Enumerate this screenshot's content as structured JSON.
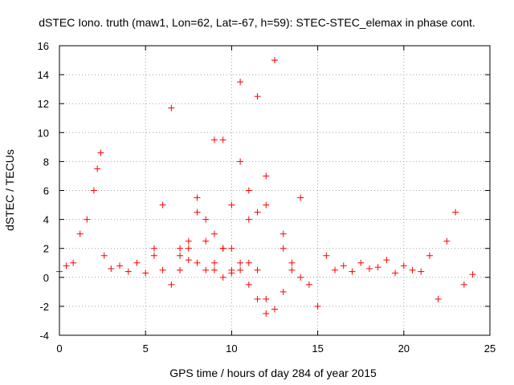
{
  "chart_data": {
    "type": "scatter",
    "title": "dSTEC Iono. truth (maw1, Lon=62, Lat=-67, h=59): STEC-STEC_elemax in phase cont.",
    "xlabel": "GPS time / hours of day 284 of year 2015",
    "ylabel": "dSTEC  / TECUs",
    "xlim": [
      0,
      25
    ],
    "ylim": [
      -4,
      16
    ],
    "x_ticks": [
      0,
      5,
      10,
      15,
      20,
      25
    ],
    "y_ticks": [
      -4,
      -2,
      0,
      2,
      4,
      6,
      8,
      10,
      12,
      14,
      16
    ],
    "grid": true,
    "marker": "+",
    "color": "#ff0000",
    "series": [
      {
        "x": [
          0.0,
          0.4,
          0.8,
          1.2,
          1.6,
          2.0,
          2.2,
          2.4,
          2.6,
          3.0,
          3.5,
          4.0,
          4.5,
          5.0,
          5.5,
          6.0,
          6.5,
          7.0,
          7.5,
          8.0,
          8.5,
          9.0,
          9.5,
          10.0,
          10.5,
          11.0,
          11.5,
          12.0,
          12.5,
          13.0,
          13.5,
          14.0,
          14.5,
          15.0,
          15.5,
          16.0,
          16.5,
          17.0,
          17.5,
          18.0,
          18.5,
          19.0,
          19.5,
          20.0,
          20.5,
          21.0,
          21.5,
          22.0,
          22.5,
          23.0,
          23.5,
          24.0
        ],
        "y": [
          0.4,
          0.8,
          1.0,
          3.0,
          4.0,
          6.0,
          7.5,
          8.6,
          1.5,
          0.6,
          0.8,
          0.4,
          1.0,
          0.3,
          1.5,
          5.0,
          11.7,
          2.0,
          1.2,
          5.5,
          4.0,
          9.5,
          2.0,
          0.5,
          8.0,
          1.0,
          4.5,
          7.0,
          15.0,
          2.0,
          0.5,
          5.5,
          -0.5,
          -2.0,
          1.5,
          0.5,
          0.8,
          0.4,
          1.0,
          0.6,
          0.7,
          1.2,
          0.3,
          0.8,
          0.5,
          0.4,
          1.5,
          -1.5,
          2.5,
          4.5,
          -0.5,
          0.2
        ]
      },
      {
        "x": [
          5.5,
          6.0,
          6.5,
          7.0,
          7.5,
          8.0,
          8.5,
          9.0,
          9.5,
          10.0,
          10.5,
          11.0,
          11.5,
          12.0
        ],
        "y": [
          2.0,
          0.5,
          -0.5,
          0.5,
          2.0,
          4.5,
          2.5,
          0.5,
          0.0,
          0.3,
          1.0,
          4.0,
          0.5,
          -1.5
        ]
      },
      {
        "x": [
          7.0,
          7.5,
          8.0,
          8.5,
          9.0,
          9.5,
          10.0,
          10.5,
          11.0,
          11.5,
          12.0,
          12.5,
          13.0
        ],
        "y": [
          1.5,
          2.5,
          1.0,
          0.5,
          3.0,
          9.5,
          2.0,
          0.5,
          -0.5,
          -1.5,
          -2.5,
          -2.2,
          -1.0
        ]
      },
      {
        "x": [
          9.0,
          9.5,
          10.0,
          10.5,
          11.0,
          11.5,
          12.0,
          12.5,
          13.0,
          13.5,
          14.0
        ],
        "y": [
          1.0,
          2.0,
          5.0,
          13.5,
          6.0,
          12.5,
          5.0,
          15.0,
          3.0,
          1.0,
          0.0
        ]
      }
    ]
  }
}
